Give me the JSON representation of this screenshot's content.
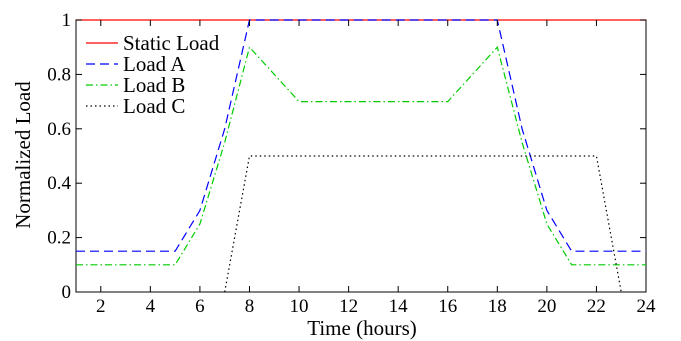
{
  "chart_data": {
    "type": "line",
    "title": "",
    "xlabel": "Time (hours)",
    "ylabel": "Normalized Load",
    "xlim": [
      1,
      24
    ],
    "ylim": [
      0,
      1
    ],
    "xticks": [
      2,
      4,
      6,
      8,
      10,
      12,
      14,
      16,
      18,
      20,
      22,
      24
    ],
    "yticks": [
      0,
      0.2,
      0.4,
      0.6,
      0.8,
      1
    ],
    "ytick_labels": [
      "0",
      "0.2",
      "0.4",
      "0.6",
      "0.8",
      "1"
    ],
    "grid": false,
    "legend_position": "top-left",
    "series": [
      {
        "name": "Static Load",
        "color": "#ff0000",
        "dash": "solid",
        "x": [
          1,
          24
        ],
        "y": [
          1,
          1
        ]
      },
      {
        "name": "Load A",
        "color": "#0000ff",
        "dash": "dashed",
        "x": [
          1,
          5,
          6,
          7,
          8,
          18,
          19,
          20,
          21,
          24
        ],
        "y": [
          0.15,
          0.15,
          0.3,
          0.6,
          1,
          1,
          0.6,
          0.3,
          0.15,
          0.15
        ]
      },
      {
        "name": "Load B",
        "color": "#00cc00",
        "dash": "dashdot",
        "x": [
          1,
          5,
          6,
          7,
          8,
          10,
          16,
          18,
          19,
          20,
          21,
          24
        ],
        "y": [
          0.1,
          0.1,
          0.25,
          0.55,
          0.9,
          0.7,
          0.7,
          0.9,
          0.55,
          0.25,
          0.1,
          0.1
        ]
      },
      {
        "name": "Load C",
        "color": "#000000",
        "dash": "dotted",
        "x": [
          7,
          8,
          22,
          23
        ],
        "y": [
          0,
          0.5,
          0.5,
          0
        ]
      }
    ]
  }
}
